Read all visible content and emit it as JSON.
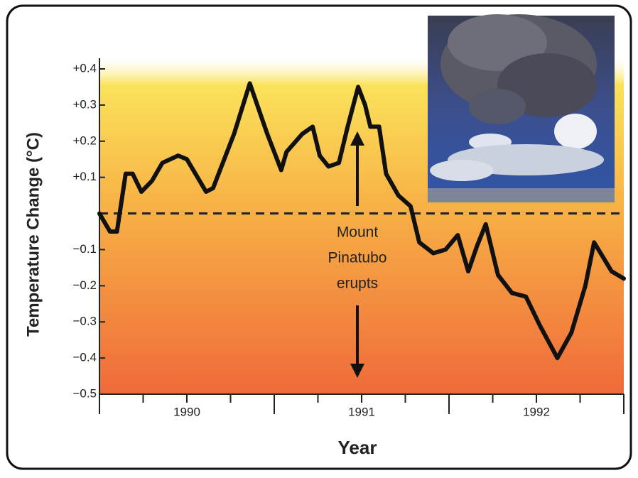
{
  "chart_data": {
    "type": "line",
    "xlabel": "Year",
    "ylabel": "Temperature Change (°C)",
    "x": [
      1990.0,
      1990.06,
      1990.1,
      1990.15,
      1990.19,
      1990.24,
      1990.3,
      1990.36,
      1990.45,
      1990.5,
      1990.61,
      1990.65,
      1990.77,
      1990.86,
      1990.96,
      1991.04,
      1991.07,
      1991.16,
      1991.22,
      1991.26,
      1991.31,
      1991.37,
      1991.42,
      1991.48,
      1991.52,
      1991.55,
      1991.6,
      1991.64,
      1991.71,
      1991.78,
      1991.83,
      1991.91,
      1991.98,
      1992.05,
      1992.11,
      1992.16,
      1992.21,
      1992.28,
      1992.36,
      1992.44,
      1992.52,
      1992.62,
      1992.7,
      1992.78,
      1992.83,
      1992.88,
      1992.93,
      1993.0
    ],
    "values": [
      0.0,
      -0.05,
      -0.05,
      0.11,
      0.11,
      0.06,
      0.09,
      0.14,
      0.16,
      0.15,
      0.06,
      0.07,
      0.22,
      0.36,
      0.22,
      0.12,
      0.17,
      0.22,
      0.24,
      0.16,
      0.13,
      0.14,
      0.24,
      0.35,
      0.3,
      0.24,
      0.24,
      0.11,
      0.05,
      0.02,
      -0.08,
      -0.11,
      -0.1,
      -0.06,
      -0.16,
      -0.09,
      -0.03,
      -0.17,
      -0.22,
      -0.23,
      -0.31,
      -0.4,
      -0.33,
      -0.2,
      -0.08,
      -0.12,
      -0.16,
      -0.18
    ],
    "color": "#111111",
    "xlim": [
      1990,
      1993
    ],
    "ylim": [
      -0.5,
      0.4
    ],
    "xticks": [
      {
        "value": 1990.5,
        "label": "1990"
      },
      {
        "value": 1991.5,
        "label": "1991"
      },
      {
        "value": 1992.5,
        "label": "1992"
      }
    ],
    "xtick_marks": [
      1990,
      1991,
      1992,
      1993
    ],
    "xminorticks": [
      1990.25,
      1990.5,
      1990.75,
      1991.25,
      1991.5,
      1991.75,
      1992.25,
      1992.5,
      1992.75
    ],
    "yticks": [
      {
        "value": 0.4,
        "label": "+0.4"
      },
      {
        "value": 0.3,
        "label": "+0.3"
      },
      {
        "value": 0.2,
        "label": "+0.2"
      },
      {
        "value": 0.1,
        "label": "+0.1"
      },
      {
        "value": -0.1,
        "label": "−0.1"
      },
      {
        "value": -0.2,
        "label": "−0.2"
      },
      {
        "value": -0.3,
        "label": "−0.3"
      },
      {
        "value": -0.4,
        "label": "−0.4"
      },
      {
        "value": -0.5,
        "label": "−0.5"
      }
    ],
    "hline": 0,
    "annotation": [
      "Mount",
      "Pinatubo",
      "erupts"
    ]
  }
}
